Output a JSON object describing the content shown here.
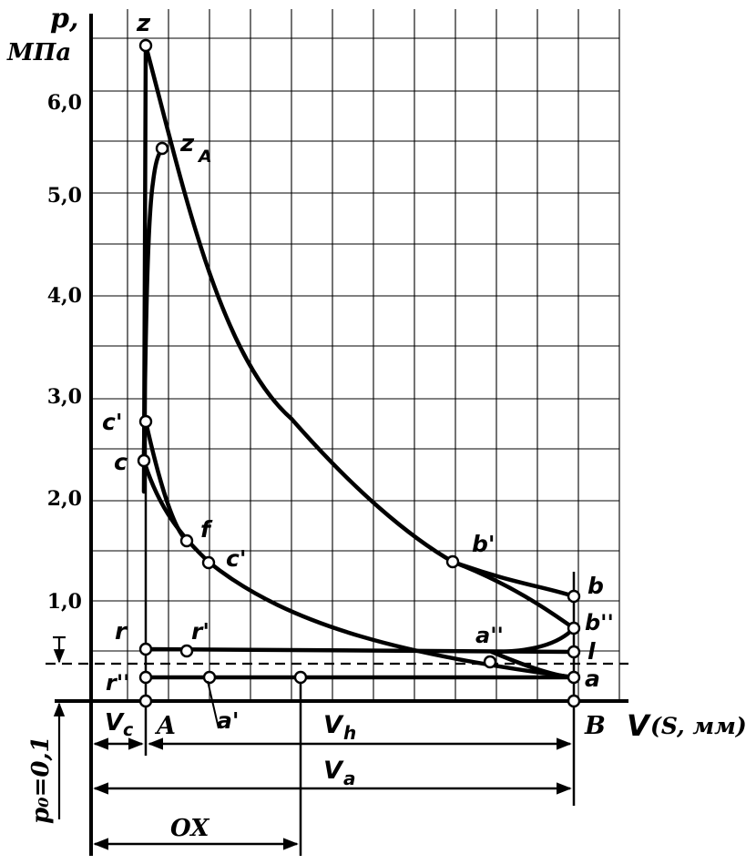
{
  "axis": {
    "p_symbol": "p,",
    "p_unit": "МПа",
    "v_symbol": "V",
    "v_unit": "(S, мм)",
    "y_ticks": [
      "6,0",
      "5,0",
      "4,0",
      "3,0",
      "2,0",
      "1,0"
    ],
    "p0_label": "p₀=0,1"
  },
  "points": {
    "z": "z",
    "zA_main": "z",
    "zA_sub": "A",
    "c_prime": "c'",
    "c": "c",
    "f": "f",
    "c_double_prime": "c'",
    "b_prime": "b'",
    "b": "b",
    "b_double_prime": "b''",
    "a_double_prime": "a''",
    "l": "l",
    "a": "a",
    "r": "r",
    "r_prime": "r'",
    "r_double_prime": "r''",
    "a_prime": "a'",
    "A": "A",
    "B": "B"
  },
  "dimensions": {
    "vc": "V",
    "vc_sub": "c",
    "vh": "V",
    "vh_sub": "h",
    "va": "V",
    "va_sub": "a",
    "ox": "OX"
  }
}
